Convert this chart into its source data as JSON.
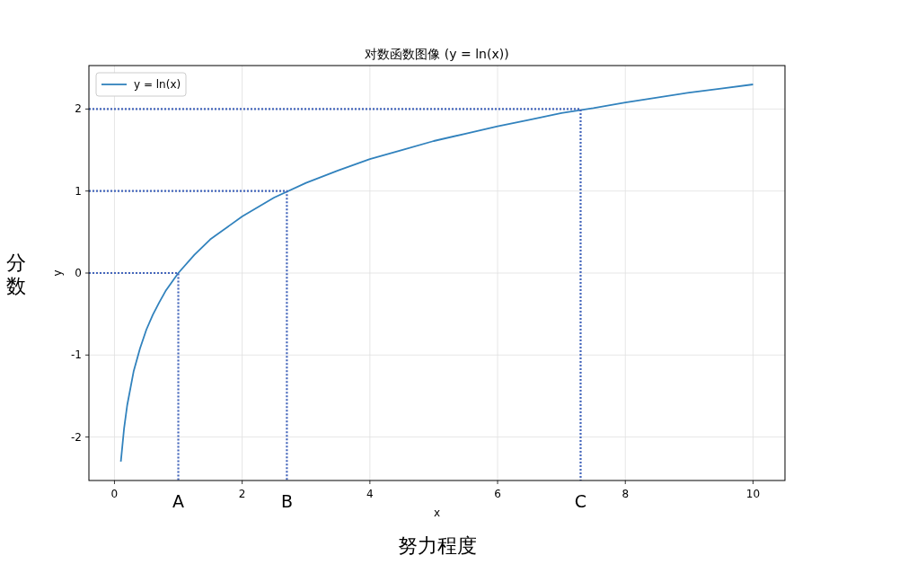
{
  "chart_data": {
    "type": "line",
    "title": "对数函数图像 (y = ln(x))",
    "xlabel": "x",
    "ylabel": "y",
    "xlim": [
      -0.4,
      10.5
    ],
    "ylim": [
      -2.53,
      2.53
    ],
    "xticks": [
      0,
      2,
      4,
      6,
      8,
      10
    ],
    "yticks": [
      -2,
      -1,
      0,
      1,
      2
    ],
    "grid": true,
    "legend": "top left",
    "series": [
      {
        "name": "y = ln(x)",
        "color": "#3182bd",
        "x": [
          0.1,
          0.15,
          0.2,
          0.3,
          0.4,
          0.5,
          0.6,
          0.7,
          0.8,
          1,
          1.25,
          1.5,
          2,
          2.5,
          3,
          3.5,
          4,
          4.5,
          5,
          5.5,
          6,
          6.5,
          7,
          7.5,
          8,
          8.5,
          9,
          9.5,
          10
        ],
        "values": [
          -2.3,
          -1.9,
          -1.61,
          -1.2,
          -0.92,
          -0.69,
          -0.51,
          -0.36,
          -0.22,
          0,
          0.22,
          0.41,
          0.69,
          0.92,
          1.1,
          1.25,
          1.39,
          1.5,
          1.61,
          1.7,
          1.79,
          1.87,
          1.95,
          2.01,
          2.08,
          2.14,
          2.2,
          2.25,
          2.3
        ]
      },
      {
        "type": "line",
        "line_style": "dotted",
        "color": "#4466bb",
        "x": [
          -0.4,
          1,
          1
        ],
        "values": [
          0,
          0,
          -2.53
        ]
      },
      {
        "type": "line",
        "line_style": "dotted",
        "color": "#4466bb",
        "x": [
          -0.4,
          2.7,
          2.7
        ],
        "values": [
          1,
          1,
          -2.53
        ]
      },
      {
        "type": "line",
        "line_style": "dotted",
        "color": "#4466bb",
        "x": [
          -0.4,
          7.3,
          7.3
        ],
        "values": [
          2,
          2,
          -2.53
        ]
      }
    ],
    "annotations": [
      {
        "text": "A",
        "x": 1,
        "y": -2.53
      },
      {
        "text": "B",
        "x": 2.7,
        "y": -2.53
      },
      {
        "text": "C",
        "x": 7.3,
        "y": -2.53
      },
      "努力程度",
      "分数"
    ]
  }
}
